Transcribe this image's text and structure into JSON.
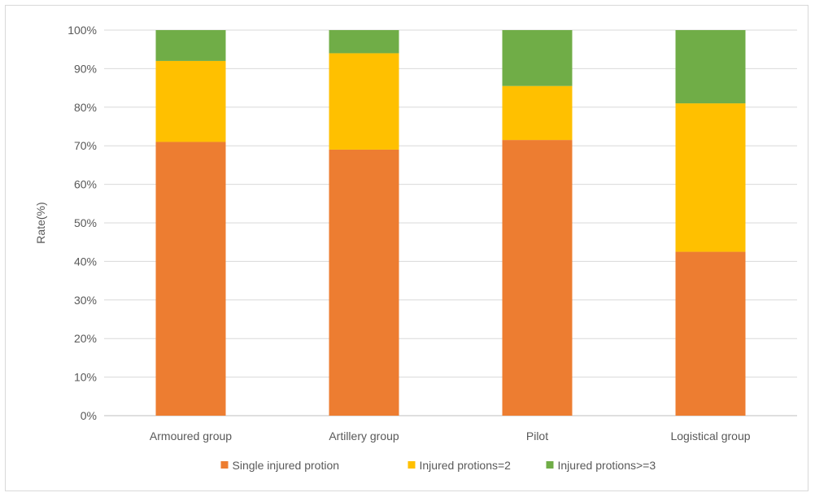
{
  "chart_data": {
    "type": "bar",
    "stacked": true,
    "title": "",
    "xlabel": "",
    "ylabel": "Rate(%)",
    "ylim": [
      0,
      100
    ],
    "yticks": [
      0,
      10,
      20,
      30,
      40,
      50,
      60,
      70,
      80,
      90,
      100
    ],
    "ytick_labels": [
      "0%",
      "10%",
      "20%",
      "30%",
      "40%",
      "50%",
      "60%",
      "70%",
      "80%",
      "90%",
      "100%"
    ],
    "grid": true,
    "legend_position": "bottom",
    "categories": [
      "Armoured group",
      "Artillery group",
      "Pilot",
      "Logistical group"
    ],
    "series": [
      {
        "name": "Single injured protion",
        "color": "#ED7D31",
        "values": [
          71,
          69,
          71.5,
          42.5
        ]
      },
      {
        "name": "Injured protions=2",
        "color": "#FFC000",
        "values": [
          21,
          25,
          14,
          38.5
        ]
      },
      {
        "name": "Injured protions>=3",
        "color": "#70AD47",
        "values": [
          8,
          6,
          14.5,
          19
        ]
      }
    ]
  }
}
